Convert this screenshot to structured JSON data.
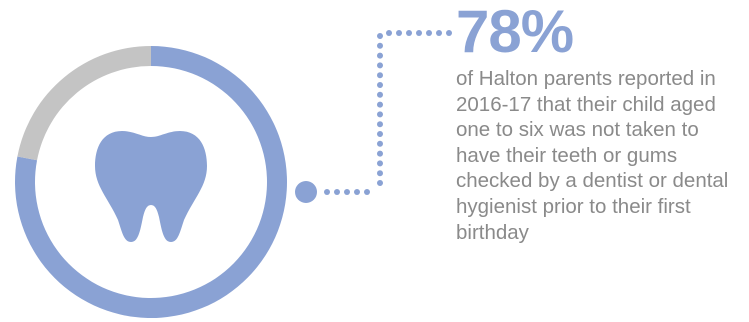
{
  "chart_data": {
    "type": "pie",
    "variant": "donut",
    "slices": [
      {
        "value": 78,
        "color": "#8aa2d4"
      },
      {
        "value": 22,
        "color": "#c4c4c4"
      }
    ],
    "icon": "tooth-icon"
  },
  "headline": {
    "value": "78%"
  },
  "description": "of Halton parents reported in 2016-17 that their child aged one to six was not taken to have their teeth or gums checked by a dentist or dental hygienist prior to their first birthday",
  "colors": {
    "accent": "#8aa2d4",
    "secondary": "#c4c4c4",
    "text": "#8a8a8a",
    "icon": "#8aa2d4"
  }
}
